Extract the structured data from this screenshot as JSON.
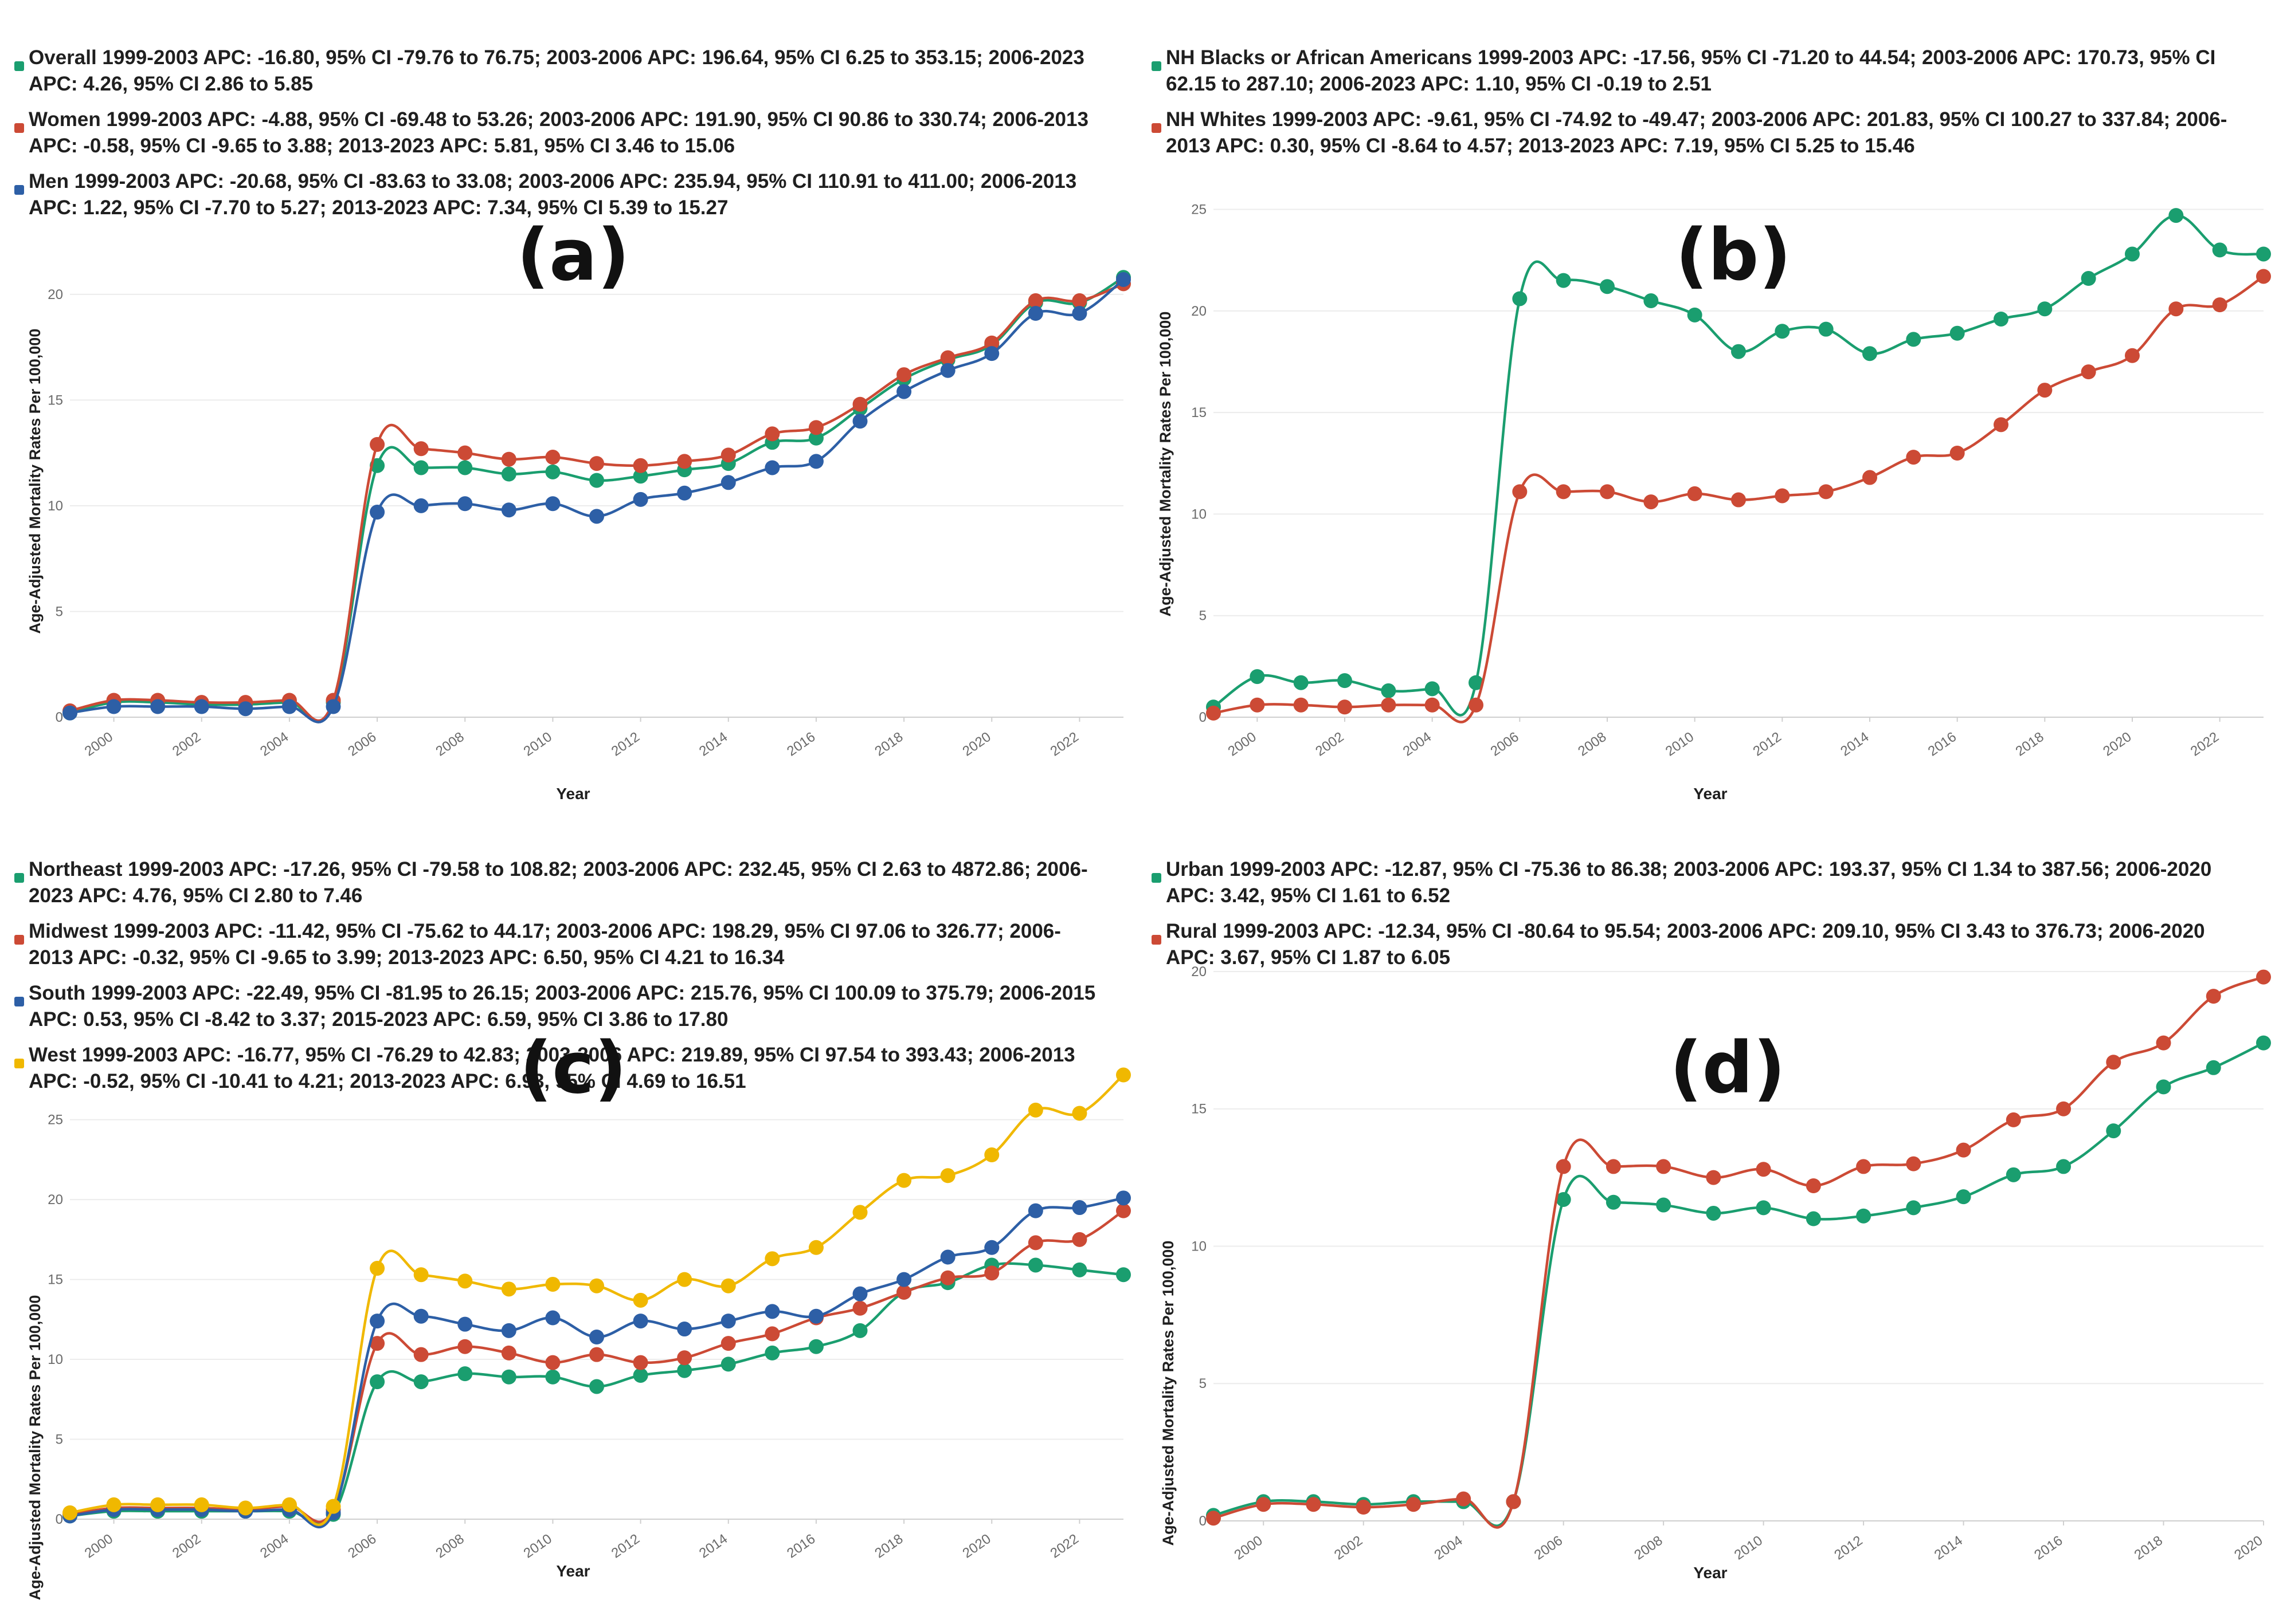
{
  "chart_data": [
    {
      "type": "line",
      "panel_label": "(a)",
      "xlabel": "Year",
      "ylabel": "Age-Adjusted Mortality Rates Per 100,000",
      "xlim": [
        1999,
        2023
      ],
      "ylim": [
        0,
        22
      ],
      "yticks": [
        0,
        5,
        10,
        15,
        20
      ],
      "xticks": [
        2000,
        2002,
        2004,
        2006,
        2008,
        2010,
        2012,
        2014,
        2016,
        2018,
        2020,
        2022
      ],
      "x": [
        1999,
        2000,
        2001,
        2002,
        2003,
        2004,
        2005,
        2006,
        2007,
        2008,
        2009,
        2010,
        2011,
        2012,
        2013,
        2014,
        2015,
        2016,
        2017,
        2018,
        2019,
        2020,
        2021,
        2022,
        2023
      ],
      "series": [
        {
          "name": "Overall 1999-2003 APC: -16.80, 95% CI -79.76 to 76.75; 2003-2006 APC: 196.64, 95% CI 6.25 to 353.15; 2006-2023 APC: 4.26, 95% CI 2.86 to 5.85",
          "color": "#1a9e6f",
          "values": [
            0.2,
            0.7,
            0.7,
            0.6,
            0.6,
            0.7,
            0.7,
            11.9,
            11.8,
            11.8,
            11.5,
            11.6,
            11.2,
            11.4,
            11.7,
            12.0,
            13.0,
            13.2,
            14.6,
            16.0,
            16.9,
            17.6,
            19.6,
            19.6,
            20.8
          ]
        },
        {
          "name": "Women 1999-2003 APC: -4.88, 95% CI -69.48 to 53.26; 2003-2006 APC: 191.90, 95% CI 90.86 to 330.74; 2006-2013 APC: -0.58, 95% CI -9.65 to 3.88; 2013-2023 APC: 5.81, 95% CI 3.46 to 15.06",
          "color": "#cc4a35",
          "values": [
            0.3,
            0.8,
            0.8,
            0.7,
            0.7,
            0.8,
            0.8,
            12.9,
            12.7,
            12.5,
            12.2,
            12.3,
            12.0,
            11.9,
            12.1,
            12.4,
            13.4,
            13.7,
            14.8,
            16.2,
            17.0,
            17.7,
            19.7,
            19.7,
            20.5
          ]
        },
        {
          "name": "Men 1999-2003 APC: -20.68, 95% CI -83.63 to 33.08; 2003-2006 APC: 235.94, 95% CI 110.91 to 411.00; 2006-2013 APC: 1.22, 95% CI -7.70 to 5.27; 2013-2023 APC: 7.34, 95% CI 5.39 to 15.27",
          "color": "#2d5fa6",
          "values": [
            0.2,
            0.5,
            0.5,
            0.5,
            0.4,
            0.5,
            0.5,
            9.7,
            10.0,
            10.1,
            9.8,
            10.1,
            9.5,
            10.3,
            10.6,
            11.1,
            11.8,
            12.1,
            14.0,
            15.4,
            16.4,
            17.2,
            19.1,
            19.1,
            20.7
          ]
        }
      ]
    },
    {
      "type": "line",
      "panel_label": "(b)",
      "xlabel": "Year",
      "ylabel": "Age-Adjusted Mortality Rates Per 100,000",
      "xlim": [
        1999,
        2023
      ],
      "ylim": [
        0,
        26
      ],
      "yticks": [
        0,
        5,
        10,
        15,
        20,
        25
      ],
      "xticks": [
        2000,
        2002,
        2004,
        2006,
        2008,
        2010,
        2012,
        2014,
        2016,
        2018,
        2020,
        2022
      ],
      "x": [
        1999,
        2000,
        2001,
        2002,
        2003,
        2004,
        2005,
        2006,
        2007,
        2008,
        2009,
        2010,
        2011,
        2012,
        2013,
        2014,
        2015,
        2016,
        2017,
        2018,
        2019,
        2020,
        2021,
        2022,
        2023
      ],
      "series": [
        {
          "name": "NH Blacks or African Americans 1999-2003 APC: -17.56, 95% CI -71.20 to 44.54; 2003-2006 APC: 170.73, 95% CI 62.15 to 287.10; 2006-2023 APC: 1.10, 95% CI -0.19 to 2.51",
          "color": "#1a9e6f",
          "values": [
            0.5,
            2.0,
            1.7,
            1.8,
            1.3,
            1.4,
            1.7,
            20.6,
            21.5,
            21.2,
            20.5,
            19.8,
            18.0,
            19.0,
            19.1,
            17.9,
            18.6,
            18.9,
            19.6,
            20.1,
            21.6,
            22.8,
            24.7,
            23.0,
            22.8
          ]
        },
        {
          "name": "NH Whites 1999-2003 APC: -9.61, 95% CI -74.92 to -49.47; 2003-2006 APC: 201.83, 95% CI 100.27 to 337.84; 2006-2013 APC: 0.30, 95% CI -8.64 to 4.57; 2013-2023 APC: 7.19, 95% CI 5.25 to 15.46",
          "color": "#cc4a35",
          "values": [
            0.2,
            0.6,
            0.6,
            0.5,
            0.6,
            0.6,
            0.6,
            11.1,
            11.1,
            11.1,
            10.6,
            11.0,
            10.7,
            10.9,
            11.1,
            11.8,
            12.8,
            13.0,
            14.4,
            16.1,
            17.0,
            17.8,
            20.1,
            20.3,
            21.7
          ]
        }
      ]
    },
    {
      "type": "line",
      "panel_label": "(c)",
      "xlabel": "Year",
      "ylabel": "Age-Adjusted Mortality Rates Per 100,000",
      "xlim": [
        1999,
        2023
      ],
      "ylim": [
        0,
        28.5
      ],
      "yticks": [
        0,
        5,
        10,
        15,
        20,
        25
      ],
      "xticks": [
        2000,
        2002,
        2004,
        2006,
        2008,
        2010,
        2012,
        2014,
        2016,
        2018,
        2020,
        2022
      ],
      "x": [
        1999,
        2000,
        2001,
        2002,
        2003,
        2004,
        2005,
        2006,
        2007,
        2008,
        2009,
        2010,
        2011,
        2012,
        2013,
        2014,
        2015,
        2016,
        2017,
        2018,
        2019,
        2020,
        2021,
        2022,
        2023
      ],
      "series": [
        {
          "name": "Northeast 1999-2003 APC: -17.26, 95% CI -79.58 to 108.82; 2003-2006 APC: 232.45, 95% CI 2.63 to 4872.86; 2006-2023 APC: 4.76, 95% CI 2.80 to 7.46",
          "color": "#1a9e6f",
          "values": [
            0.2,
            0.5,
            0.5,
            0.5,
            0.5,
            0.5,
            0.3,
            8.6,
            8.6,
            9.1,
            8.9,
            8.9,
            8.3,
            9.0,
            9.3,
            9.7,
            10.4,
            10.8,
            11.8,
            14.2,
            14.8,
            15.9,
            15.9,
            15.6,
            15.3
          ]
        },
        {
          "name": "Midwest 1999-2003 APC: -11.42, 95% CI -75.62 to 44.17; 2003-2006 APC: 198.29, 95% CI 97.06 to 326.77; 2006-2013 APC: -0.32, 95% CI -9.65 to 3.99; 2013-2023 APC: 6.50, 95% CI 4.21 to 16.34",
          "color": "#cc4a35",
          "values": [
            0.3,
            0.7,
            0.7,
            0.7,
            0.6,
            0.8,
            0.6,
            11.0,
            10.3,
            10.8,
            10.4,
            9.8,
            10.3,
            9.8,
            10.1,
            11.0,
            11.6,
            12.6,
            13.2,
            14.2,
            15.1,
            15.4,
            17.3,
            17.5,
            19.3
          ]
        },
        {
          "name": "South 1999-2003 APC: -22.49, 95% CI -81.95 to 26.15; 2003-2006 APC: 215.76, 95% CI 100.09 to 375.79; 2006-2015 APC: 0.53, 95% CI -8.42 to 3.37; 2015-2023 APC: 6.59, 95% CI 3.86 to 17.80",
          "color": "#2d5fa6",
          "values": [
            0.2,
            0.6,
            0.6,
            0.6,
            0.5,
            0.6,
            0.4,
            12.4,
            12.7,
            12.2,
            11.8,
            12.6,
            11.4,
            12.4,
            11.9,
            12.4,
            13.0,
            12.7,
            14.1,
            15.0,
            16.4,
            17.0,
            19.3,
            19.5,
            20.1
          ]
        },
        {
          "name": "West 1999-2003 APC: -16.77, 95% CI -76.29 to 42.83; 2003-2006 APC: 219.89, 95% CI 97.54 to 393.43; 2006-2013 APC: -0.52, 95% CI -10.41 to 4.21; 2013-2023 APC: 6.93, 95% CI 4.69 to 16.51",
          "color": "#f0b800",
          "values": [
            0.4,
            0.9,
            0.9,
            0.9,
            0.7,
            0.9,
            0.8,
            15.7,
            15.3,
            14.9,
            14.4,
            14.7,
            14.6,
            13.7,
            15.0,
            14.6,
            16.3,
            17.0,
            19.2,
            21.2,
            21.5,
            22.8,
            25.6,
            25.4,
            27.8
          ]
        }
      ]
    },
    {
      "type": "line",
      "panel_label": "(d)",
      "xlabel": "Year",
      "ylabel": "Age-Adjusted Mortality Rates Per 100,000",
      "xlim": [
        1999,
        2020
      ],
      "ylim": [
        0,
        20.5
      ],
      "yticks": [
        0,
        5,
        10,
        15,
        20
      ],
      "xticks": [
        2000,
        2002,
        2004,
        2006,
        2008,
        2010,
        2012,
        2014,
        2016,
        2018,
        2020
      ],
      "x": [
        1999,
        2000,
        2001,
        2002,
        2003,
        2004,
        2005,
        2006,
        2007,
        2008,
        2009,
        2010,
        2011,
        2012,
        2013,
        2014,
        2015,
        2016,
        2017,
        2018,
        2019,
        2020
      ],
      "series": [
        {
          "name": "Urban 1999-2003 APC: -12.87, 95% CI -75.36 to 86.38; 2003-2006 APC: 193.37, 95% CI 1.34 to 387.56; 2006-2020 APC: 3.42, 95% CI 1.61 to 6.52",
          "color": "#1a9e6f",
          "values": [
            0.2,
            0.7,
            0.7,
            0.6,
            0.7,
            0.7,
            0.7,
            11.7,
            11.6,
            11.5,
            11.2,
            11.4,
            11.0,
            11.1,
            11.4,
            11.8,
            12.6,
            12.9,
            14.2,
            15.8,
            16.5,
            17.4
          ]
        },
        {
          "name": "Rural 1999-2003 APC: -12.34, 95% CI -80.64 to 95.54; 2003-2006 APC: 209.10, 95% CI 3.43 to 376.73; 2006-2020 APC: 3.67, 95% CI 1.87 to 6.05",
          "color": "#cc4a35",
          "values": [
            0.1,
            0.6,
            0.6,
            0.5,
            0.6,
            0.8,
            0.7,
            12.9,
            12.9,
            12.9,
            12.5,
            12.8,
            12.2,
            12.9,
            13.0,
            13.5,
            14.6,
            15.0,
            16.7,
            17.4,
            19.1,
            19.8
          ]
        }
      ]
    }
  ]
}
